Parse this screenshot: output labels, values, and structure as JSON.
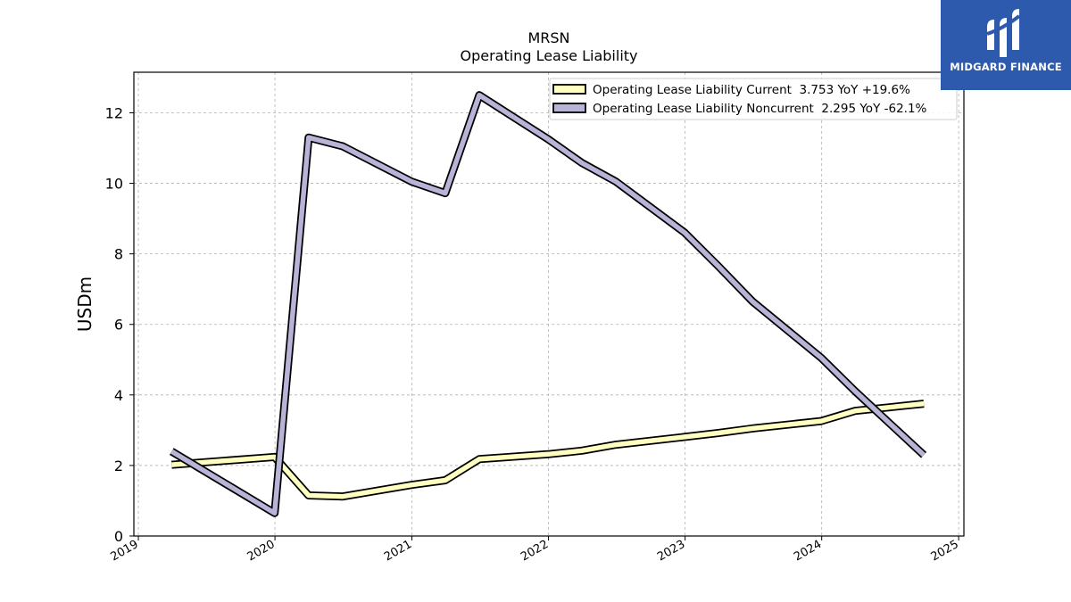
{
  "chart_data": {
    "type": "line",
    "title": "MRSN",
    "subtitle": "Operating Lease Liability",
    "xlabel": "",
    "ylabel": "USDm",
    "xlim": [
      "2018-12-20",
      "2025-01-15"
    ],
    "ylim": [
      0,
      13.15
    ],
    "yticks": [
      0,
      2,
      4,
      6,
      8,
      10,
      12
    ],
    "xticks": [
      "2019",
      "2020",
      "2021",
      "2022",
      "2023",
      "2024",
      "2025"
    ],
    "grid": true,
    "legend_position": "top-right",
    "series": [
      {
        "name": "Operating Lease Liability Current  3.753 YoY +19.6%",
        "color": "#ffffc0",
        "x": [
          "2019-03-31",
          "2019-12-31",
          "2020-03-31",
          "2020-06-30",
          "2020-12-31",
          "2021-03-31",
          "2021-06-30",
          "2021-12-31",
          "2022-03-31",
          "2022-06-30",
          "2022-12-31",
          "2023-03-31",
          "2023-06-30",
          "2023-12-31",
          "2024-03-31",
          "2024-06-30",
          "2024-09-30"
        ],
        "values": [
          2.02,
          2.24,
          1.15,
          1.12,
          1.45,
          1.58,
          2.18,
          2.32,
          2.42,
          2.59,
          2.81,
          2.92,
          3.05,
          3.26,
          3.55,
          3.65,
          3.753
        ]
      },
      {
        "name": "Operating Lease Liability Noncurrent  2.295 YoY -62.1%",
        "color": "#b8b4d8",
        "x": [
          "2019-03-31",
          "2019-12-31",
          "2020-03-31",
          "2020-06-30",
          "2020-12-31",
          "2021-03-31",
          "2021-06-30",
          "2021-12-31",
          "2022-03-31",
          "2022-06-30",
          "2022-12-31",
          "2023-03-31",
          "2023-06-30",
          "2023-12-31",
          "2024-03-31",
          "2024-06-30",
          "2024-09-30"
        ],
        "values": [
          2.4,
          0.65,
          11.3,
          11.05,
          10.05,
          9.72,
          12.5,
          11.25,
          10.58,
          10.05,
          8.6,
          7.65,
          6.65,
          5.05,
          4.1,
          3.2,
          2.295
        ]
      }
    ]
  },
  "logo": {
    "text": "MIDGARD FINANCE"
  }
}
